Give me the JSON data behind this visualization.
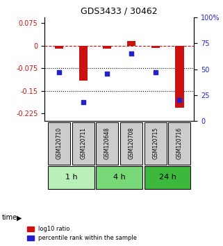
{
  "title": "GDS3433 / 30462",
  "samples": [
    "GSM120710",
    "GSM120711",
    "GSM120648",
    "GSM120708",
    "GSM120715",
    "GSM120716"
  ],
  "log10_ratio": [
    -0.01,
    -0.115,
    -0.01,
    0.015,
    -0.008,
    -0.205
  ],
  "percentile_rank": [
    47,
    18,
    46,
    65,
    47,
    20
  ],
  "time_groups": [
    {
      "label": "1 h",
      "color": "#b8f0b8"
    },
    {
      "label": "4 h",
      "color": "#78d878"
    },
    {
      "label": "24 h",
      "color": "#3cb83c"
    }
  ],
  "ylim_left": [
    -0.25,
    0.095
  ],
  "ylim_right": [
    0,
    100
  ],
  "yticks_left": [
    0.075,
    0,
    -0.075,
    -0.15,
    -0.225
  ],
  "ytick_labels_left": [
    "0.075",
    "0",
    "-0.075",
    "-0.15",
    "-0.225"
  ],
  "yticks_right": [
    100,
    75,
    50,
    25,
    0
  ],
  "ytick_labels_right": [
    "100%",
    "75",
    "50",
    "25",
    "0"
  ],
  "hlines": [
    -0.075,
    -0.15
  ],
  "bar_color": "#cc1111",
  "dot_color": "#2222cc",
  "sample_box_color": "#cccccc",
  "legend_red_label": "log10 ratio",
  "legend_blue_label": "percentile rank within the sample"
}
